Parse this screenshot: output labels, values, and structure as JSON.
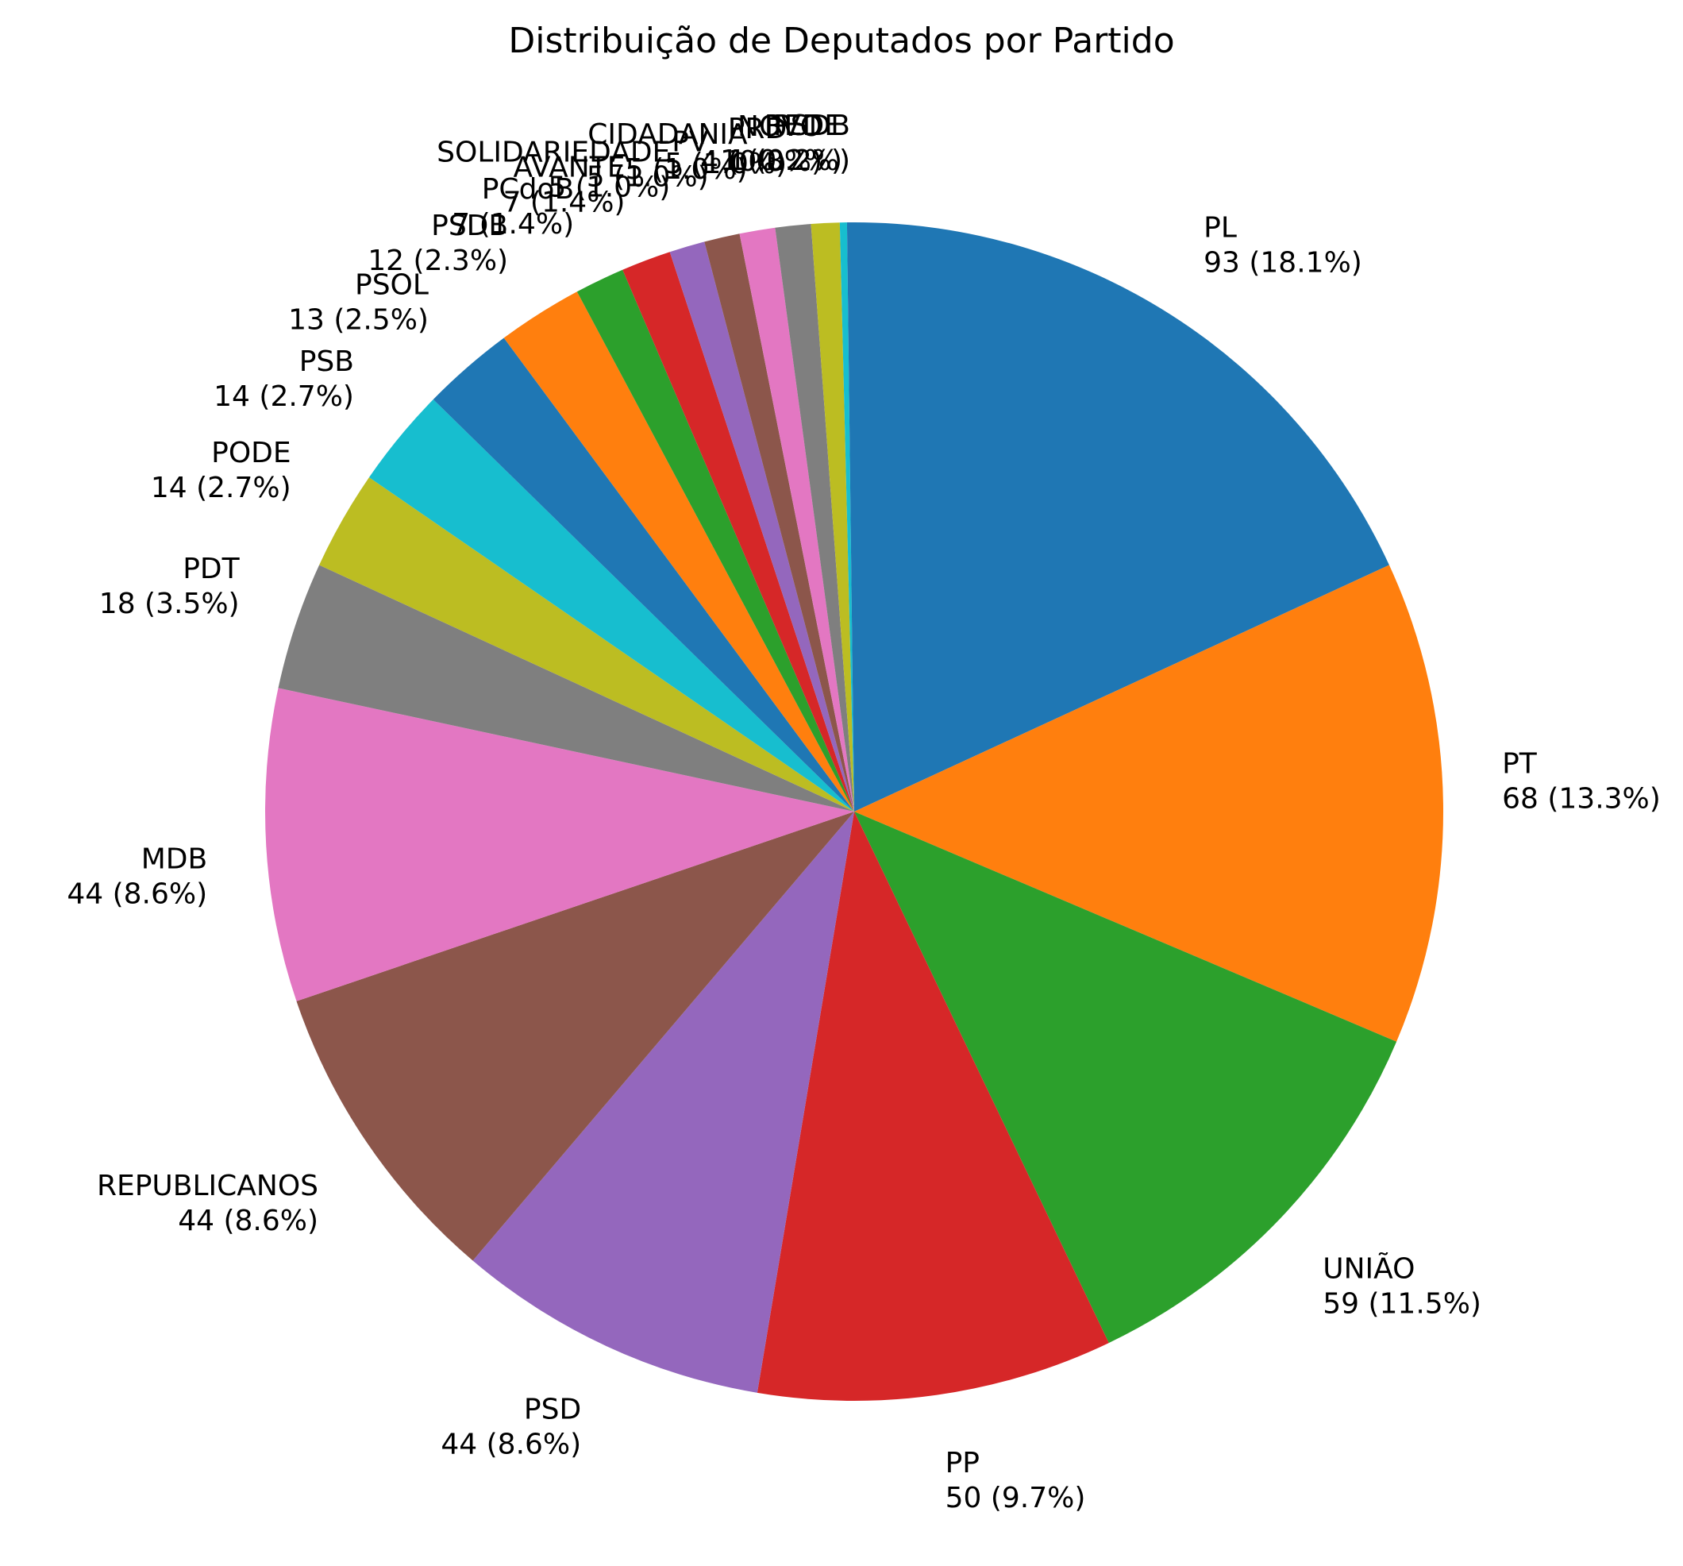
{
  "chart_data": {
    "type": "pie",
    "title": "Distribuição de Deputados por Partido",
    "start_angle_deg": 90,
    "direction": "clockwise",
    "label_format": "{value} ({percent})",
    "slices": [
      {
        "label": "PL",
        "value": 93,
        "percent": "18.1%",
        "color": "#1f77b4"
      },
      {
        "label": "PT",
        "value": 68,
        "percent": "13.3%",
        "color": "#ff7f0e"
      },
      {
        "label": "UNIÃO",
        "value": 59,
        "percent": "11.5%",
        "color": "#2ca02c"
      },
      {
        "label": "PP",
        "value": 50,
        "percent": "9.7%",
        "color": "#d62728"
      },
      {
        "label": "PSD",
        "value": 44,
        "percent": "8.6%",
        "color": "#9467bd"
      },
      {
        "label": "REPUBLICANOS",
        "value": 44,
        "percent": "8.6%",
        "color": "#8c564b"
      },
      {
        "label": "MDB",
        "value": 44,
        "percent": "8.6%",
        "color": "#e377c2"
      },
      {
        "label": "PDT",
        "value": 18,
        "percent": "3.5%",
        "color": "#7f7f7f"
      },
      {
        "label": "PODE",
        "value": 14,
        "percent": "2.7%",
        "color": "#bcbd22"
      },
      {
        "label": "PSB",
        "value": 14,
        "percent": "2.7%",
        "color": "#17becf"
      },
      {
        "label": "PSOL",
        "value": 13,
        "percent": "2.5%",
        "color": "#1f77b4"
      },
      {
        "label": "PSDB",
        "value": 12,
        "percent": "2.3%",
        "color": "#ff7f0e"
      },
      {
        "label": "PCdoB",
        "value": 7,
        "percent": "1.4%",
        "color": "#2ca02c"
      },
      {
        "label": "AVANTE",
        "value": 7,
        "percent": "1.4%",
        "color": "#d62728"
      },
      {
        "label": "SOLIDARIEDADE",
        "value": 5,
        "percent": "1.0%",
        "color": "#9467bd"
      },
      {
        "label": "PV",
        "value": 5,
        "percent": "1.0%",
        "color": "#8c564b"
      },
      {
        "label": "CIDADANIA",
        "value": 5,
        "percent": "1.0%",
        "color": "#e377c2"
      },
      {
        "label": "PRD",
        "value": 5,
        "percent": "1.0%",
        "color": "#7f7f7f"
      },
      {
        "label": "NOVO",
        "value": 4,
        "percent": "0.8%",
        "color": "#bcbd22"
      },
      {
        "label": "REDE",
        "value": 1,
        "percent": "0.2%",
        "color": "#17becf"
      },
      {
        "label": "PSDB",
        "value": 1,
        "percent": "0.2%",
        "color": "#1f77b4"
      }
    ]
  }
}
